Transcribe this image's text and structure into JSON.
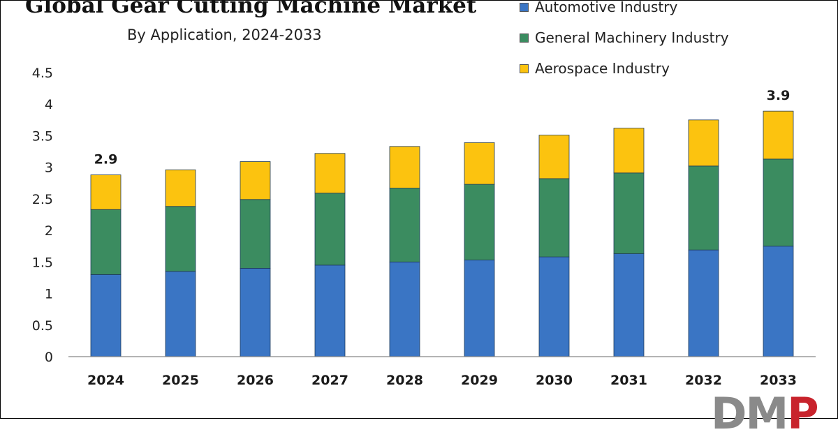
{
  "title": "Global Gear Cutting Machine Market",
  "subtitle": "By Application, 2024-2033",
  "logo": {
    "text_gray": "DM",
    "text_red": "P"
  },
  "colors": {
    "automotive": "#3a75c4",
    "general_machinery": "#3b8c60",
    "aerospace": "#fcc30f"
  },
  "chart_data": {
    "type": "bar",
    "stacked": true,
    "title": "Global Gear Cutting Machine Market",
    "subtitle": "By Application, 2024-2033",
    "xlabel": "",
    "ylabel": "",
    "categories": [
      "2024",
      "2025",
      "2026",
      "2027",
      "2028",
      "2029",
      "2030",
      "2031",
      "2032",
      "2033"
    ],
    "series": [
      {
        "name": "Automotive Industry",
        "color": "#3a75c4",
        "values": [
          1.3,
          1.35,
          1.4,
          1.45,
          1.5,
          1.53,
          1.58,
          1.63,
          1.69,
          1.75
        ]
      },
      {
        "name": "General Machinery Industry",
        "color": "#3b8c60",
        "values": [
          1.03,
          1.03,
          1.09,
          1.14,
          1.17,
          1.2,
          1.24,
          1.28,
          1.33,
          1.38
        ]
      },
      {
        "name": "Aerospace Industry",
        "color": "#fcc30f",
        "values": [
          0.55,
          0.58,
          0.6,
          0.63,
          0.66,
          0.66,
          0.69,
          0.71,
          0.73,
          0.76
        ]
      }
    ],
    "totals": [
      2.88,
      2.96,
      3.09,
      3.22,
      3.33,
      3.39,
      3.51,
      3.62,
      3.75,
      3.89
    ],
    "data_labels": [
      {
        "category": "2024",
        "text": "2.9"
      },
      {
        "category": "2033",
        "text": "3.9"
      }
    ],
    "ylim": [
      0,
      4.5
    ],
    "yticks": [
      "0",
      "0.5",
      "1",
      "1.5",
      "2",
      "2.5",
      "3",
      "3.5",
      "4",
      "4.5"
    ],
    "grid": false,
    "legend_position": "top-right"
  }
}
